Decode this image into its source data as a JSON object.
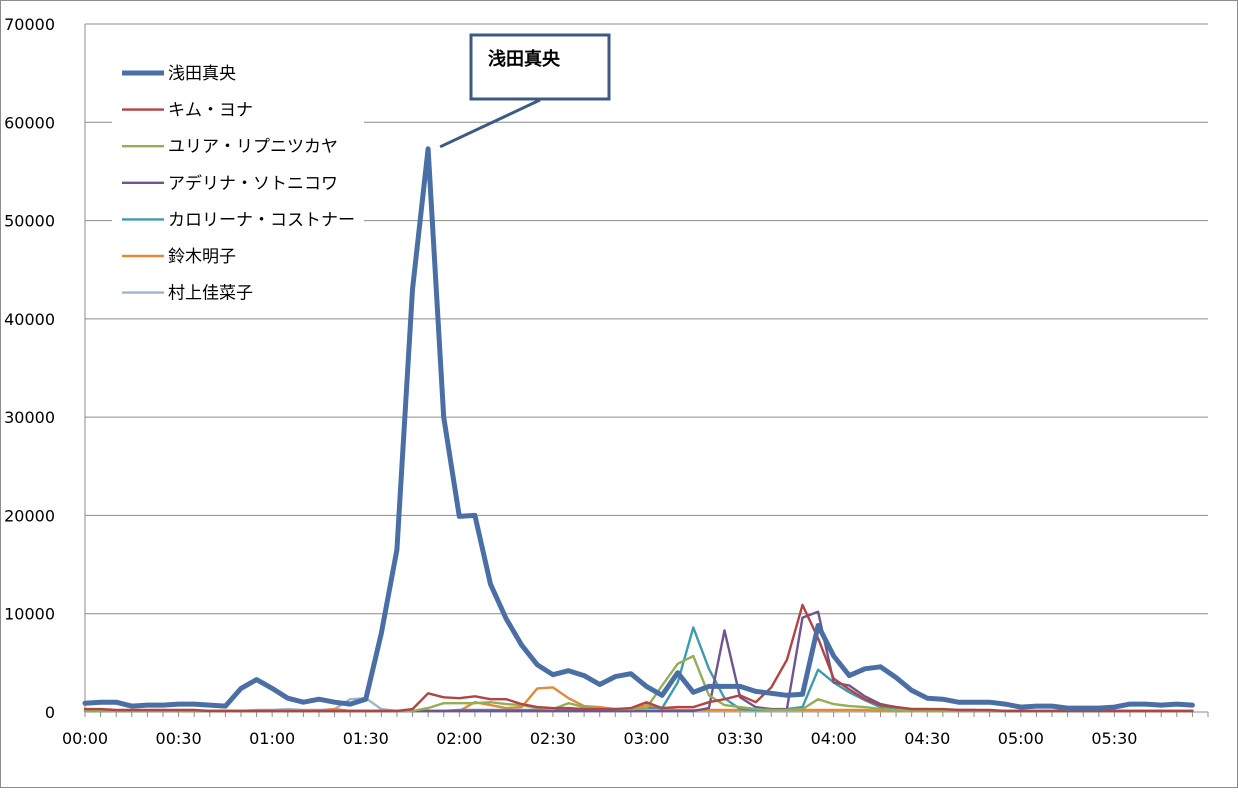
{
  "chart_data": {
    "type": "line",
    "title": "",
    "xlabel": "",
    "ylabel": "",
    "ylim": [
      0,
      70000
    ],
    "yticks": [
      0,
      10000,
      20000,
      30000,
      40000,
      50000,
      60000,
      70000
    ],
    "ytick_labels": [
      "0",
      "10000",
      "20000",
      "30000",
      "40000",
      "50000",
      "60000",
      "70000"
    ],
    "xticks": [
      "00:00",
      "00:30",
      "01:00",
      "01:30",
      "02:00",
      "02:30",
      "03:00",
      "03:30",
      "04:00",
      "04:30",
      "05:00",
      "05:30"
    ],
    "x_step_minutes": 5,
    "grid": "horizontal",
    "legend": "top-left",
    "annotation": {
      "text": "浅田真央",
      "series": "浅田真央",
      "point_index": 22
    },
    "series": [
      {
        "name": "浅田真央",
        "color": "#4A6FA5",
        "values": [
          900,
          1000,
          1000,
          600,
          700,
          700,
          800,
          800,
          700,
          600,
          2400,
          3300,
          2400,
          1400,
          1000,
          1300,
          1000,
          800,
          1300,
          8000,
          16500,
          43000,
          57300,
          30000,
          19900,
          20000,
          13000,
          9500,
          6800,
          4800,
          3800,
          4200,
          3700,
          2800,
          3600,
          3900,
          2600,
          1700,
          4000,
          2000,
          2600,
          2600,
          2600,
          2100,
          1900,
          1700,
          1800,
          8800,
          5700,
          3700,
          4400,
          4600,
          3500,
          2200,
          1400,
          1300,
          1000,
          1000,
          1000,
          800,
          500,
          600,
          600,
          400,
          400,
          400,
          500,
          800,
          800,
          700,
          800,
          700
        ]
      },
      {
        "name": "キム・ヨナ",
        "color": "#B04545",
        "values": [
          300,
          300,
          200,
          200,
          200,
          200,
          200,
          200,
          100,
          100,
          100,
          100,
          100,
          100,
          100,
          100,
          100,
          100,
          100,
          100,
          100,
          300,
          1900,
          1500,
          1400,
          1600,
          1300,
          1300,
          800,
          500,
          400,
          400,
          300,
          300,
          300,
          400,
          1000,
          400,
          500,
          500,
          1000,
          1300,
          1700,
          1000,
          2500,
          5300,
          10900,
          7500,
          3400,
          2300,
          1300,
          700,
          500,
          300,
          300,
          300,
          200,
          200,
          200,
          100,
          100,
          100,
          100,
          100,
          100,
          100,
          100,
          100,
          100,
          100,
          100,
          100
        ]
      },
      {
        "name": "ユリア・リプニツカヤ",
        "color": "#93AE55",
        "values": [
          100,
          100,
          100,
          100,
          100,
          100,
          100,
          100,
          100,
          100,
          100,
          100,
          100,
          100,
          100,
          100,
          100,
          100,
          100,
          100,
          100,
          100,
          400,
          900,
          900,
          900,
          1000,
          800,
          700,
          400,
          300,
          900,
          500,
          400,
          300,
          300,
          400,
          2700,
          4900,
          5700,
          1700,
          700,
          500,
          300,
          200,
          200,
          300,
          1300,
          800,
          600,
          500,
          300,
          200,
          200,
          100,
          100,
          100,
          100,
          100,
          100,
          100,
          100,
          100,
          100,
          100,
          100,
          100,
          100,
          100,
          100,
          100,
          100
        ]
      },
      {
        "name": "アデリナ・ソトニコワ",
        "color": "#6E5590",
        "values": [
          100,
          100,
          100,
          100,
          100,
          100,
          100,
          100,
          100,
          100,
          100,
          100,
          100,
          100,
          100,
          100,
          100,
          100,
          100,
          100,
          100,
          100,
          100,
          100,
          100,
          100,
          100,
          100,
          100,
          100,
          100,
          100,
          100,
          100,
          100,
          100,
          100,
          100,
          100,
          100,
          400,
          8300,
          1500,
          500,
          300,
          300,
          9600,
          10200,
          3000,
          2700,
          1600,
          800,
          500,
          300,
          300,
          200,
          200,
          200,
          100,
          100,
          100,
          100,
          100,
          100,
          100,
          100,
          100,
          100,
          100,
          100,
          100,
          100
        ]
      },
      {
        "name": "カロリーナ・コストナー",
        "color": "#3E9AAE",
        "values": [
          100,
          100,
          100,
          100,
          100,
          100,
          100,
          100,
          100,
          100,
          100,
          100,
          100,
          100,
          100,
          100,
          100,
          100,
          100,
          100,
          100,
          100,
          100,
          100,
          200,
          200,
          200,
          200,
          200,
          200,
          300,
          300,
          300,
          200,
          200,
          300,
          400,
          400,
          3000,
          8600,
          4400,
          1400,
          300,
          200,
          200,
          300,
          500,
          4300,
          3000,
          2000,
          1200,
          500,
          300,
          200,
          200,
          100,
          100,
          100,
          100,
          100,
          100,
          100,
          100,
          100,
          100,
          100,
          100,
          100,
          100,
          100,
          100,
          100
        ]
      },
      {
        "name": "鈴木明子",
        "color": "#E08A3A",
        "values": [
          100,
          100,
          100,
          100,
          100,
          100,
          100,
          100,
          100,
          100,
          100,
          100,
          100,
          100,
          100,
          100,
          300,
          100,
          100,
          100,
          100,
          100,
          100,
          100,
          100,
          1000,
          700,
          400,
          500,
          2400,
          2500,
          1400,
          600,
          500,
          300,
          300,
          700,
          300,
          200,
          200,
          200,
          200,
          200,
          200,
          200,
          200,
          200,
          200,
          200,
          200,
          200,
          100,
          100,
          100,
          100,
          100,
          100,
          100,
          100,
          100,
          100,
          100,
          100,
          100,
          100,
          100,
          100,
          100,
          100,
          100,
          100,
          100
        ]
      },
      {
        "name": "村上佳菜子",
        "color": "#9FB3CF",
        "values": [
          100,
          100,
          100,
          100,
          100,
          100,
          100,
          100,
          100,
          100,
          100,
          200,
          200,
          300,
          200,
          200,
          300,
          1300,
          1400,
          300,
          100,
          100,
          100,
          100,
          100,
          100,
          100,
          100,
          100,
          100,
          100,
          100,
          100,
          100,
          100,
          100,
          100,
          100,
          100,
          100,
          100,
          100,
          100,
          100,
          100,
          100,
          100,
          100,
          100,
          100,
          100,
          100,
          100,
          100,
          100,
          100,
          100,
          100,
          100,
          100,
          100,
          100,
          100,
          100,
          100,
          100,
          100,
          100,
          100,
          100,
          100,
          100
        ]
      }
    ]
  }
}
